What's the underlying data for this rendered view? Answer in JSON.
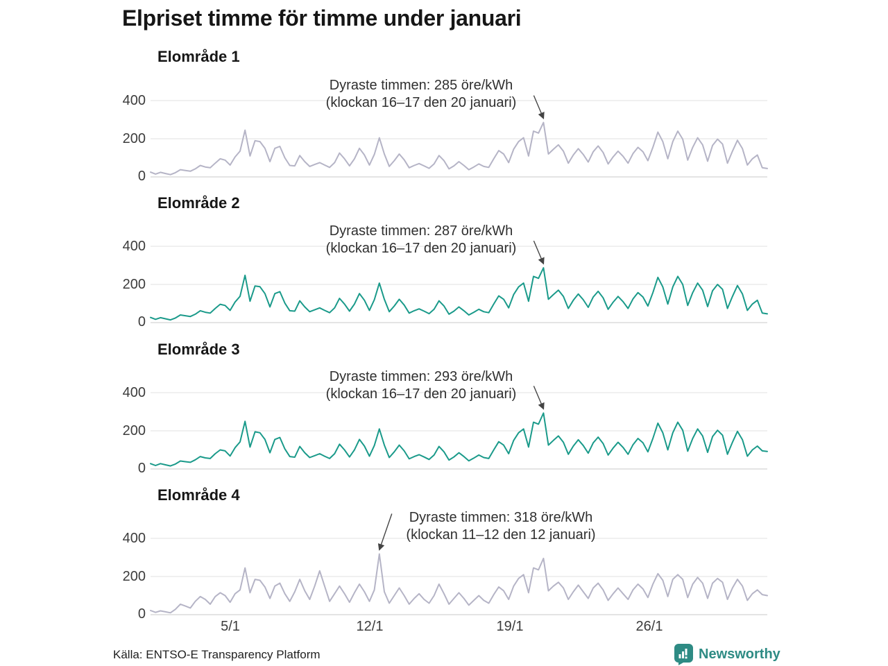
{
  "title": "Elpriset timme för timme under januari",
  "source": "Källa: ENTSO-E Transparency Platform",
  "brand": {
    "name": "Newsworthy",
    "color": "#2e8b84",
    "icon": "newsworthy-bar-chart-badge-icon"
  },
  "x_axis": {
    "labels": [
      "5/1",
      "12/1",
      "19/1",
      "26/1"
    ],
    "tick_hours": [
      96,
      264,
      432,
      600
    ],
    "shown_below_chart": "Elområde 4"
  },
  "y_axis": {
    "ticks": [
      "400",
      "200",
      "0"
    ],
    "unit": "öre/kWh"
  },
  "colors": {
    "line_gray": "#b5b4c6",
    "line_teal": "#1a9a8a",
    "grid": "#e2e2e2",
    "baseline": "#c9c9c9",
    "annotation_arrow": "#444444",
    "text": "#1b1b1b"
  },
  "chart_data": [
    {
      "type": "line",
      "label": "Elområde 1",
      "unit": "öre/kWh",
      "color": "#b5b4c6",
      "grid": true,
      "ylim": [
        0,
        460
      ],
      "yticks": [
        400,
        200,
        0
      ],
      "x_range_hours": [
        0,
        744
      ],
      "sample_step_hours": 6,
      "annotation": {
        "line1": "Dyraste timmen: 285 öre/kWh",
        "line2": "(klockan 16–17 den 20 januari)",
        "peak_value": 285,
        "peak_hour": 474,
        "text_side": "left"
      },
      "values": [
        25,
        15,
        24,
        18,
        12,
        22,
        38,
        34,
        30,
        42,
        60,
        52,
        48,
        72,
        95,
        88,
        62,
        105,
        135,
        245,
        110,
        190,
        185,
        150,
        80,
        150,
        160,
        100,
        60,
        58,
        112,
        80,
        55,
        65,
        75,
        62,
        50,
        75,
        125,
        95,
        58,
        95,
        150,
        115,
        62,
        118,
        205,
        120,
        55,
        85,
        120,
        90,
        48,
        60,
        70,
        58,
        45,
        68,
        112,
        85,
        42,
        58,
        80,
        60,
        38,
        52,
        68,
        55,
        50,
        95,
        138,
        120,
        75,
        145,
        185,
        205,
        110,
        240,
        230,
        285,
        120,
        145,
        168,
        135,
        72,
        115,
        148,
        118,
        78,
        132,
        162,
        128,
        68,
        105,
        135,
        108,
        72,
        122,
        155,
        132,
        85,
        155,
        235,
        185,
        95,
        185,
        240,
        198,
        88,
        155,
        205,
        168,
        82,
        165,
        198,
        172,
        72,
        135,
        192,
        148,
        62,
        95,
        115,
        48,
        44
      ]
    },
    {
      "type": "line",
      "label": "Elområde 2",
      "unit": "öre/kWh",
      "color": "#1a9a8a",
      "grid": true,
      "ylim": [
        0,
        460
      ],
      "yticks": [
        400,
        200,
        0
      ],
      "x_range_hours": [
        0,
        744
      ],
      "sample_step_hours": 6,
      "annotation": {
        "line1": "Dyraste timmen: 287 öre/kWh",
        "line2": "(klockan 16–17 den 20 januari)",
        "peak_value": 287,
        "peak_hour": 474,
        "text_side": "left"
      },
      "values": [
        27,
        17,
        26,
        20,
        14,
        24,
        40,
        36,
        32,
        44,
        62,
        54,
        50,
        74,
        96,
        90,
        64,
        108,
        138,
        248,
        112,
        192,
        188,
        152,
        82,
        152,
        162,
        102,
        62,
        60,
        114,
        82,
        57,
        67,
        77,
        64,
        52,
        77,
        127,
        97,
        60,
        97,
        152,
        117,
        64,
        120,
        207,
        122,
        57,
        87,
        122,
        92,
        50,
        62,
        72,
        60,
        47,
        70,
        114,
        87,
        44,
        60,
        82,
        62,
        40,
        54,
        70,
        57,
        52,
        97,
        140,
        122,
        77,
        147,
        187,
        207,
        112,
        242,
        232,
        287,
        122,
        147,
        170,
        137,
        74,
        117,
        150,
        120,
        80,
        134,
        164,
        130,
        70,
        107,
        137,
        110,
        74,
        124,
        157,
        134,
        87,
        157,
        237,
        187,
        97,
        187,
        242,
        200,
        90,
        157,
        207,
        170,
        84,
        167,
        200,
        174,
        74,
        137,
        194,
        150,
        64,
        97,
        117,
        50,
        46
      ]
    },
    {
      "type": "line",
      "label": "Elområde 3",
      "unit": "öre/kWh",
      "color": "#1a9a8a",
      "grid": true,
      "ylim": [
        0,
        460
      ],
      "yticks": [
        400,
        200,
        0
      ],
      "x_range_hours": [
        0,
        744
      ],
      "sample_step_hours": 6,
      "annotation": {
        "line1": "Dyraste timmen: 293 öre/kWh",
        "line2": "(klockan 16–17 den 20 januari)",
        "peak_value": 293,
        "peak_hour": 474,
        "text_side": "left"
      },
      "values": [
        28,
        18,
        28,
        22,
        16,
        26,
        42,
        38,
        35,
        48,
        65,
        58,
        55,
        80,
        100,
        95,
        68,
        112,
        142,
        250,
        115,
        195,
        190,
        155,
        85,
        155,
        165,
        105,
        65,
        62,
        118,
        85,
        60,
        70,
        80,
        67,
        55,
        80,
        130,
        100,
        63,
        100,
        155,
        120,
        67,
        123,
        210,
        125,
        60,
        90,
        125,
        95,
        53,
        65,
        75,
        63,
        50,
        73,
        118,
        90,
        47,
        63,
        85,
        65,
        43,
        57,
        73,
        60,
        55,
        100,
        143,
        125,
        80,
        150,
        190,
        210,
        115,
        245,
        235,
        293,
        125,
        150,
        173,
        140,
        77,
        120,
        153,
        123,
        83,
        137,
        167,
        133,
        73,
        110,
        140,
        113,
        77,
        127,
        160,
        137,
        90,
        160,
        240,
        190,
        100,
        190,
        245,
        203,
        93,
        160,
        210,
        173,
        87,
        170,
        203,
        177,
        77,
        140,
        197,
        153,
        67,
        100,
        120,
        95,
        92
      ]
    },
    {
      "type": "line",
      "label": "Elområde 4",
      "unit": "öre/kWh",
      "color": "#b5b4c6",
      "grid": true,
      "ylim": [
        0,
        460
      ],
      "yticks": [
        400,
        200,
        0
      ],
      "x_range_hours": [
        0,
        744
      ],
      "sample_step_hours": 6,
      "annotation": {
        "line1": "Dyraste timmen: 318 öre/kWh",
        "line2": "(klockan 11–12 den 12 januari)",
        "peak_value": 318,
        "peak_hour": 276,
        "text_side": "right"
      },
      "values": [
        22,
        12,
        20,
        15,
        10,
        28,
        55,
        45,
        35,
        70,
        95,
        80,
        55,
        95,
        115,
        100,
        65,
        110,
        130,
        245,
        115,
        185,
        180,
        145,
        85,
        150,
        165,
        110,
        70,
        120,
        185,
        125,
        80,
        150,
        230,
        150,
        70,
        110,
        150,
        110,
        65,
        115,
        160,
        120,
        70,
        130,
        318,
        120,
        60,
        100,
        140,
        100,
        55,
        85,
        110,
        80,
        60,
        100,
        160,
        110,
        55,
        85,
        115,
        85,
        50,
        75,
        100,
        75,
        60,
        105,
        145,
        125,
        80,
        150,
        190,
        210,
        115,
        245,
        235,
        295,
        125,
        150,
        170,
        140,
        80,
        120,
        155,
        120,
        85,
        140,
        165,
        130,
        75,
        110,
        140,
        110,
        80,
        130,
        160,
        135,
        90,
        160,
        215,
        180,
        95,
        185,
        210,
        185,
        90,
        160,
        195,
        165,
        85,
        165,
        190,
        170,
        80,
        140,
        185,
        150,
        75,
        110,
        130,
        105,
        100
      ]
    }
  ]
}
